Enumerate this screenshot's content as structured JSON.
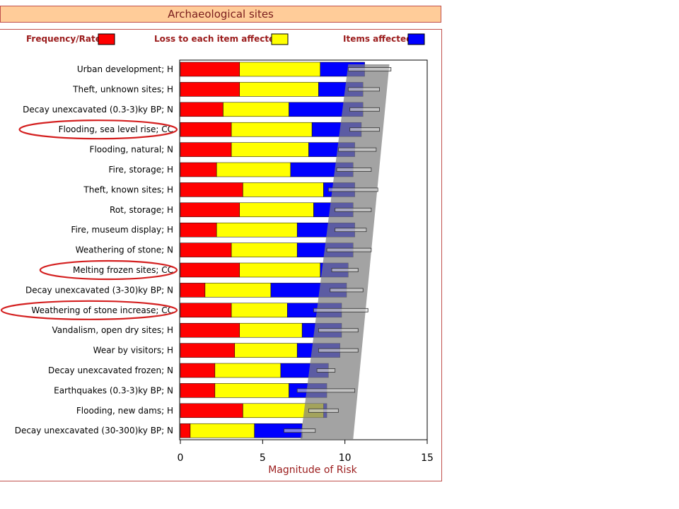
{
  "title": "Archaeological sites",
  "legend": [
    {
      "label": "Frequency/Rate",
      "color": "#ff0000"
    },
    {
      "label": "Loss to each item affected",
      "color": "#ffff00"
    },
    {
      "label": "Items affected",
      "color": "#0000ff"
    }
  ],
  "chart_data": {
    "type": "bar",
    "orientation": "horizontal",
    "stacked": true,
    "xlabel": "Magnitude of Risk",
    "xlim": [
      0,
      15
    ],
    "xticks": [
      0,
      5,
      10,
      15
    ],
    "categories": [
      "Urban development; H",
      "Theft, unknown sites; H",
      "Decay unexcavated (0.3-3)ky BP; N",
      "Flooding, sea level rise; CC",
      "Flooding, natural; N",
      "Fire, storage; H",
      "Theft, known sites; H",
      "Rot, storage; H",
      "Fire, museum display; H",
      "Weathering of stone; N",
      "Melting frozen sites; CC",
      "Decay unexcavated (3-30)ky BP; N",
      "Weathering of stone increase; CC",
      "Vandalism, open dry sites; H",
      "Wear by visitors; H",
      "Decay unexcavated frozen; N",
      "Earthquakes (0.3-3)ky BP; N",
      "Flooding, new dams; H",
      "Decay unexcavated (30-300)ky BP; N"
    ],
    "highlighted": [
      "Flooding, sea level rise; CC",
      "Melting frozen sites; CC",
      "Weathering of stone increase; CC"
    ],
    "series": [
      {
        "name": "Frequency/Rate",
        "color": "#ff0000",
        "values": [
          3.6,
          3.6,
          2.6,
          3.1,
          3.1,
          2.2,
          3.8,
          3.6,
          2.2,
          3.1,
          3.6,
          1.5,
          3.1,
          3.6,
          3.3,
          2.1,
          2.1,
          3.8,
          0.6
        ]
      },
      {
        "name": "Loss to each item affected",
        "color": "#ffff00",
        "values": [
          4.9,
          4.8,
          4.0,
          4.9,
          4.7,
          4.5,
          4.9,
          4.5,
          4.9,
          4.0,
          4.9,
          4.0,
          3.4,
          3.8,
          3.8,
          4.0,
          4.5,
          4.9,
          3.9
        ]
      },
      {
        "name": "Items affected",
        "color": "#0000ff",
        "values": [
          2.7,
          2.7,
          4.5,
          3.0,
          2.8,
          3.8,
          1.9,
          2.4,
          3.5,
          3.4,
          1.7,
          4.6,
          3.3,
          2.4,
          2.6,
          2.9,
          2.3,
          0.2,
          2.9
        ]
      }
    ],
    "uncertainty": [
      {
        "low": 10.2,
        "high": 12.8
      },
      {
        "low": 10.2,
        "high": 12.1
      },
      {
        "low": 10.3,
        "high": 12.1
      },
      {
        "low": 10.3,
        "high": 12.1
      },
      {
        "low": 9.6,
        "high": 11.9
      },
      {
        "low": 9.5,
        "high": 11.6
      },
      {
        "low": 9.0,
        "high": 12.0
      },
      {
        "low": 9.4,
        "high": 11.6
      },
      {
        "low": 9.4,
        "high": 11.3
      },
      {
        "low": 8.9,
        "high": 11.6
      },
      {
        "low": 9.2,
        "high": 10.8
      },
      {
        "low": 9.1,
        "high": 11.1
      },
      {
        "low": 8.1,
        "high": 11.4
      },
      {
        "low": 8.4,
        "high": 10.8
      },
      {
        "low": 8.4,
        "high": 10.8
      },
      {
        "low": 8.3,
        "high": 9.4
      },
      {
        "low": 7.1,
        "high": 10.6
      },
      {
        "low": 7.8,
        "high": 9.6
      },
      {
        "low": 6.3,
        "high": 8.2
      }
    ],
    "grey_band": {
      "top": [
        12.7,
        10.5
      ],
      "bottom": [
        10.2,
        7.3
      ]
    }
  }
}
